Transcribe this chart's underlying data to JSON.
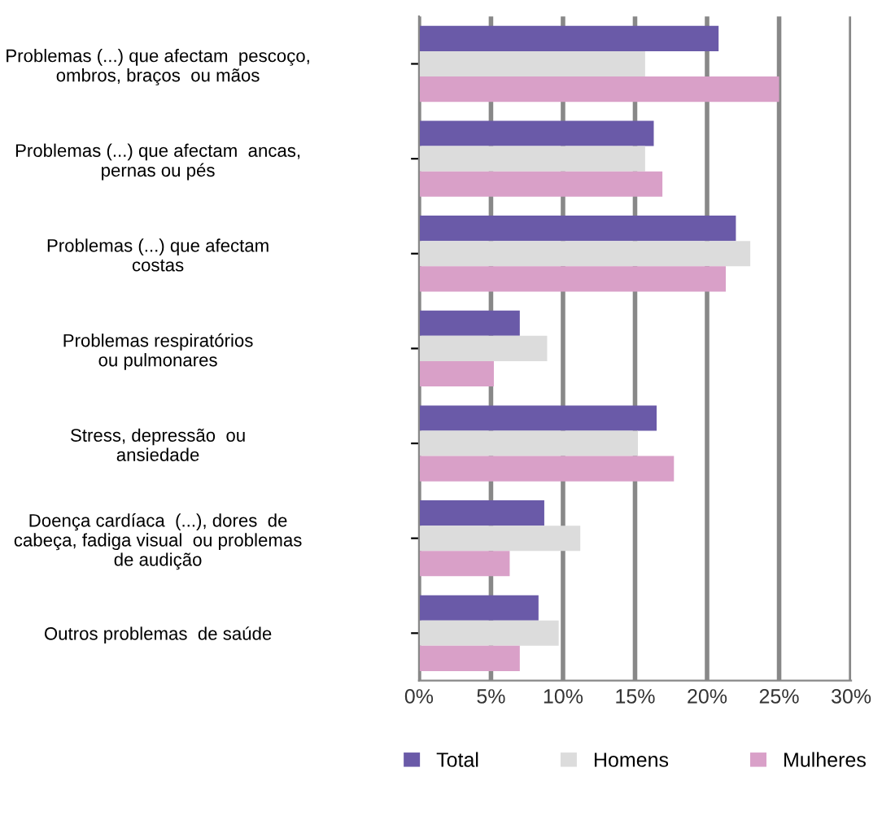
{
  "chart_data": {
    "type": "bar",
    "orientation": "horizontal",
    "categories": [
      "Problemas (...) que afectam  pescoço,\nombros, braços  ou mãos",
      "Problemas (...) que afectam  ancas,\npernas ou pés",
      "Problemas (...) que afectam\ncostas",
      "Problemas respiratórios\nou pulmonares",
      "Stress, depressão  ou\nansiedade",
      "Doença cardíaca  (...), dores  de\ncabeça, fadiga visual  ou problemas\nde audição",
      "Outros problemas  de saúde"
    ],
    "series": [
      {
        "name": "Total",
        "color": "#6a5aa8",
        "values": [
          20.8,
          16.3,
          22.0,
          7.0,
          16.5,
          8.7,
          8.3
        ]
      },
      {
        "name": "Homens",
        "color": "#dcdcdc",
        "values": [
          15.7,
          15.7,
          23.0,
          8.9,
          15.2,
          11.2,
          9.7
        ]
      },
      {
        "name": "Mulheres",
        "color": "#d9a0c8",
        "values": [
          25.0,
          16.9,
          21.3,
          5.2,
          17.7,
          6.3,
          7.0
        ]
      }
    ],
    "xlim": [
      0,
      30
    ],
    "xticks": [
      {
        "value": 0,
        "label": "0%"
      },
      {
        "value": 5,
        "label": "5%"
      },
      {
        "value": 10,
        "label": "10%"
      },
      {
        "value": 15,
        "label": "15%"
      },
      {
        "value": 20,
        "label": "20%"
      },
      {
        "value": 25,
        "label": "25%"
      },
      {
        "value": 30,
        "label": "30%"
      }
    ],
    "grid": "x",
    "legend": "bottom"
  }
}
